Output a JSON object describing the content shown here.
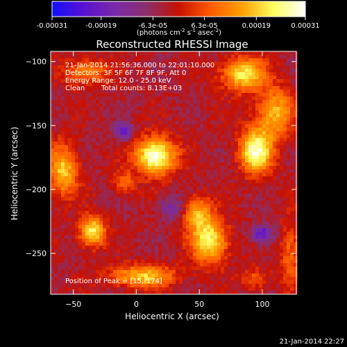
{
  "colorbar": {
    "tick_labels": [
      "-0.00031",
      "-0.00019",
      "-6.3e-05",
      "6.3e-05",
      "0.00019",
      "0.00031"
    ],
    "tick_values": [
      -0.00031,
      -0.00019,
      -6.3e-05,
      6.3e-05,
      0.00019,
      0.00031
    ],
    "range": [
      -0.00031,
      0.00031
    ],
    "units_text": "(photons cm",
    "units_exp1": "-2",
    "units_mid": " s",
    "units_exp2": "-1",
    "units_end": " asec",
    "units_exp3": "-2",
    "units_close": ")",
    "colors": [
      "#1010ff",
      "#5a10d0",
      "#7a2aa8",
      "#8a2f6a",
      "#c81000",
      "#ff5a00",
      "#ffa000",
      "#ffff60",
      "#ffffff"
    ]
  },
  "chart_data": {
    "type": "heatmap",
    "title": "Reconstructed RHESSI Image",
    "xlabel": "Heliocentric X (arcsec)",
    "ylabel": "Heliocentric Y (arcsec)",
    "xlim": [
      -68,
      127
    ],
    "ylim": [
      -282,
      -92
    ],
    "xticks": [
      -50,
      0,
      50,
      100
    ],
    "yticks": [
      -100,
      -150,
      -200,
      -250
    ],
    "annotations": {
      "time_range": "21-Jan-2014 21:56:36.000 to 22:01:10.000",
      "detectors": "Detectors: 3F 5F 6F 7F 8F 9F, Att 0",
      "energy": "Energy Range: 12.0 - 25.0 keV",
      "method": "Clean",
      "counts": "Total counts: 8.13E+03",
      "peak": "Position of Peak = [15,-174]"
    },
    "peak": [
      15,
      -174
    ],
    "sources": [
      {
        "x": 15,
        "y": -174,
        "amp": 1.0,
        "sx": 11,
        "sy": 10
      },
      {
        "x": 95,
        "y": -170,
        "amp": 0.9,
        "sx": 9,
        "sy": 12
      },
      {
        "x": 85,
        "y": -110,
        "amp": 0.75,
        "sx": 12,
        "sy": 9
      },
      {
        "x": 110,
        "y": -140,
        "amp": 0.6,
        "sx": 10,
        "sy": 14
      },
      {
        "x": 58,
        "y": -240,
        "amp": 0.8,
        "sx": 10,
        "sy": 12
      },
      {
        "x": 48,
        "y": -218,
        "amp": 0.55,
        "sx": 8,
        "sy": 9
      },
      {
        "x": -35,
        "y": -233,
        "amp": 0.8,
        "sx": 7,
        "sy": 8
      },
      {
        "x": -58,
        "y": -185,
        "amp": 0.65,
        "sx": 8,
        "sy": 14
      },
      {
        "x": 5,
        "y": -268,
        "amp": 0.65,
        "sx": 18,
        "sy": 6
      },
      {
        "x": -40,
        "y": -108,
        "amp": 0.45,
        "sx": 12,
        "sy": 7
      },
      {
        "x": -10,
        "y": -195,
        "amp": 0.35,
        "sx": 6,
        "sy": 6
      },
      {
        "x": 122,
        "y": -250,
        "amp": 0.35,
        "sx": 5,
        "sy": 18
      },
      {
        "x": 95,
        "y": -270,
        "amp": 0.3,
        "sx": 8,
        "sy": 6
      },
      {
        "x": 100,
        "y": -235,
        "amp": -0.6,
        "sx": 6,
        "sy": 5
      },
      {
        "x": -10,
        "y": -155,
        "amp": -0.55,
        "sx": 5,
        "sy": 5
      },
      {
        "x": 28,
        "y": -215,
        "amp": -0.35,
        "sx": 7,
        "sy": 6
      }
    ]
  },
  "footer": {
    "timestamp": "21-Jan-2014 22:27"
  }
}
